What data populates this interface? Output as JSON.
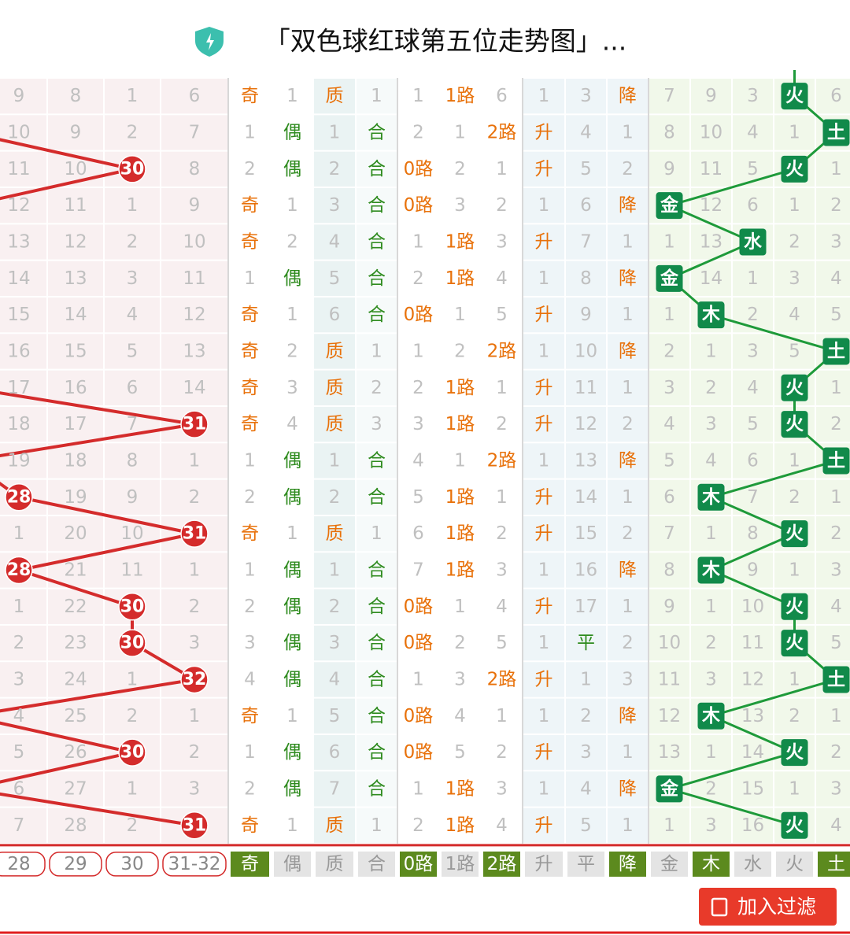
{
  "header": {
    "title": "「双色球红球第五位走势图」..."
  },
  "table": {
    "columns": [
      {
        "label": "28",
        "hit_color": "#d42b2b",
        "selected": false
      },
      {
        "label": "29",
        "hit_color": "#d42b2b",
        "selected": false
      },
      {
        "label": "30",
        "hit_color": "#d42b2b",
        "selected": false
      },
      {
        "label": "31-32",
        "hit_color": "#d42b2b",
        "selected": false
      },
      {
        "label": "奇",
        "hit_color": "#e8710a",
        "selected": true
      },
      {
        "label": "偶",
        "hit_color": "#2e8b1e",
        "selected": false
      },
      {
        "label": "质",
        "hit_color": "#e8710a",
        "selected": false
      },
      {
        "label": "合",
        "hit_color": "#2e8b1e",
        "selected": false
      },
      {
        "label": "0路",
        "hit_color": "#e8710a",
        "selected": true
      },
      {
        "label": "1路",
        "hit_color": "#e8710a",
        "selected": false
      },
      {
        "label": "2路",
        "hit_color": "#e8710a",
        "selected": true
      },
      {
        "label": "升",
        "hit_color": "#e8710a",
        "selected": false
      },
      {
        "label": "平",
        "hit_color": "#2e8b1e",
        "selected": false
      },
      {
        "label": "降",
        "hit_color": "#e8710a",
        "selected": true
      },
      {
        "label": "金",
        "hit_color": "#118a4a",
        "selected": false
      },
      {
        "label": "木",
        "hit_color": "#118a4a",
        "selected": true
      },
      {
        "label": "水",
        "hit_color": "#118a4a",
        "selected": false
      },
      {
        "label": "火",
        "hit_color": "#118a4a",
        "selected": false
      },
      {
        "label": "土",
        "hit_color": "#118a4a",
        "selected": true
      }
    ],
    "rows": [
      [
        "9",
        "8",
        "1",
        "6",
        "奇",
        "1",
        "质",
        "1",
        "1",
        "1路",
        "6",
        "1",
        "3",
        "降",
        "7",
        "9",
        "3",
        "火",
        "6"
      ],
      [
        "10",
        "9",
        "2",
        "7",
        "1",
        "偶",
        "1",
        "合",
        "2",
        "1",
        "2路",
        "升",
        "4",
        "1",
        "8",
        "10",
        "4",
        "1",
        "土"
      ],
      [
        "11",
        "10",
        "30",
        "8",
        "2",
        "偶",
        "2",
        "合",
        "0路",
        "2",
        "1",
        "升",
        "5",
        "2",
        "9",
        "11",
        "5",
        "火",
        "1"
      ],
      [
        "12",
        "11",
        "1",
        "9",
        "奇",
        "1",
        "3",
        "合",
        "0路",
        "3",
        "2",
        "1",
        "6",
        "降",
        "金",
        "12",
        "6",
        "1",
        "2"
      ],
      [
        "13",
        "12",
        "2",
        "10",
        "奇",
        "2",
        "4",
        "合",
        "1",
        "1路",
        "3",
        "升",
        "7",
        "1",
        "1",
        "13",
        "水",
        "2",
        "3"
      ],
      [
        "14",
        "13",
        "3",
        "11",
        "1",
        "偶",
        "5",
        "合",
        "2",
        "1路",
        "4",
        "1",
        "8",
        "降",
        "金",
        "14",
        "1",
        "3",
        "4"
      ],
      [
        "15",
        "14",
        "4",
        "12",
        "奇",
        "1",
        "6",
        "合",
        "0路",
        "1",
        "5",
        "升",
        "9",
        "1",
        "1",
        "木",
        "2",
        "4",
        "5"
      ],
      [
        "16",
        "15",
        "5",
        "13",
        "奇",
        "2",
        "质",
        "1",
        "1",
        "2",
        "2路",
        "1",
        "10",
        "降",
        "2",
        "1",
        "3",
        "5",
        "土"
      ],
      [
        "17",
        "16",
        "6",
        "14",
        "奇",
        "3",
        "质",
        "2",
        "2",
        "1路",
        "1",
        "升",
        "11",
        "1",
        "3",
        "2",
        "4",
        "火",
        "1"
      ],
      [
        "18",
        "17",
        "7",
        "31",
        "奇",
        "4",
        "质",
        "3",
        "3",
        "1路",
        "2",
        "升",
        "12",
        "2",
        "4",
        "3",
        "5",
        "火",
        "2"
      ],
      [
        "19",
        "18",
        "8",
        "1",
        "1",
        "偶",
        "1",
        "合",
        "4",
        "1",
        "2路",
        "1",
        "13",
        "降",
        "5",
        "4",
        "6",
        "1",
        "土"
      ],
      [
        "28",
        "19",
        "9",
        "2",
        "2",
        "偶",
        "2",
        "合",
        "5",
        "1路",
        "1",
        "升",
        "14",
        "1",
        "6",
        "木",
        "7",
        "2",
        "1"
      ],
      [
        "1",
        "20",
        "10",
        "31",
        "奇",
        "1",
        "质",
        "1",
        "6",
        "1路",
        "2",
        "升",
        "15",
        "2",
        "7",
        "1",
        "8",
        "火",
        "2"
      ],
      [
        "28",
        "21",
        "11",
        "1",
        "1",
        "偶",
        "1",
        "合",
        "7",
        "1路",
        "3",
        "1",
        "16",
        "降",
        "8",
        "木",
        "9",
        "1",
        "3"
      ],
      [
        "1",
        "22",
        "30",
        "2",
        "2",
        "偶",
        "2",
        "合",
        "0路",
        "1",
        "4",
        "升",
        "17",
        "1",
        "9",
        "1",
        "10",
        "火",
        "4"
      ],
      [
        "2",
        "23",
        "30",
        "3",
        "3",
        "偶",
        "3",
        "合",
        "0路",
        "2",
        "5",
        "1",
        "平",
        "2",
        "10",
        "2",
        "11",
        "火",
        "5"
      ],
      [
        "3",
        "24",
        "1",
        "32",
        "4",
        "偶",
        "4",
        "合",
        "1",
        "3",
        "2路",
        "升",
        "1",
        "3",
        "11",
        "3",
        "12",
        "1",
        "土"
      ],
      [
        "4",
        "25",
        "2",
        "1",
        "奇",
        "1",
        "5",
        "合",
        "0路",
        "4",
        "1",
        "1",
        "2",
        "降",
        "12",
        "木",
        "13",
        "2",
        "1"
      ],
      [
        "5",
        "26",
        "30",
        "2",
        "1",
        "偶",
        "6",
        "合",
        "0路",
        "5",
        "2",
        "升",
        "3",
        "1",
        "13",
        "1",
        "14",
        "火",
        "2"
      ],
      [
        "6",
        "27",
        "1",
        "3",
        "2",
        "偶",
        "7",
        "合",
        "1",
        "1路",
        "3",
        "1",
        "4",
        "降",
        "金",
        "2",
        "15",
        "1",
        "3"
      ],
      [
        "7",
        "28",
        "2",
        "31",
        "奇",
        "1",
        "质",
        "1",
        "2",
        "1路",
        "4",
        "升",
        "5",
        "1",
        "1",
        "3",
        "16",
        "火",
        "4"
      ]
    ]
  },
  "button": {
    "label": "加入过滤"
  }
}
